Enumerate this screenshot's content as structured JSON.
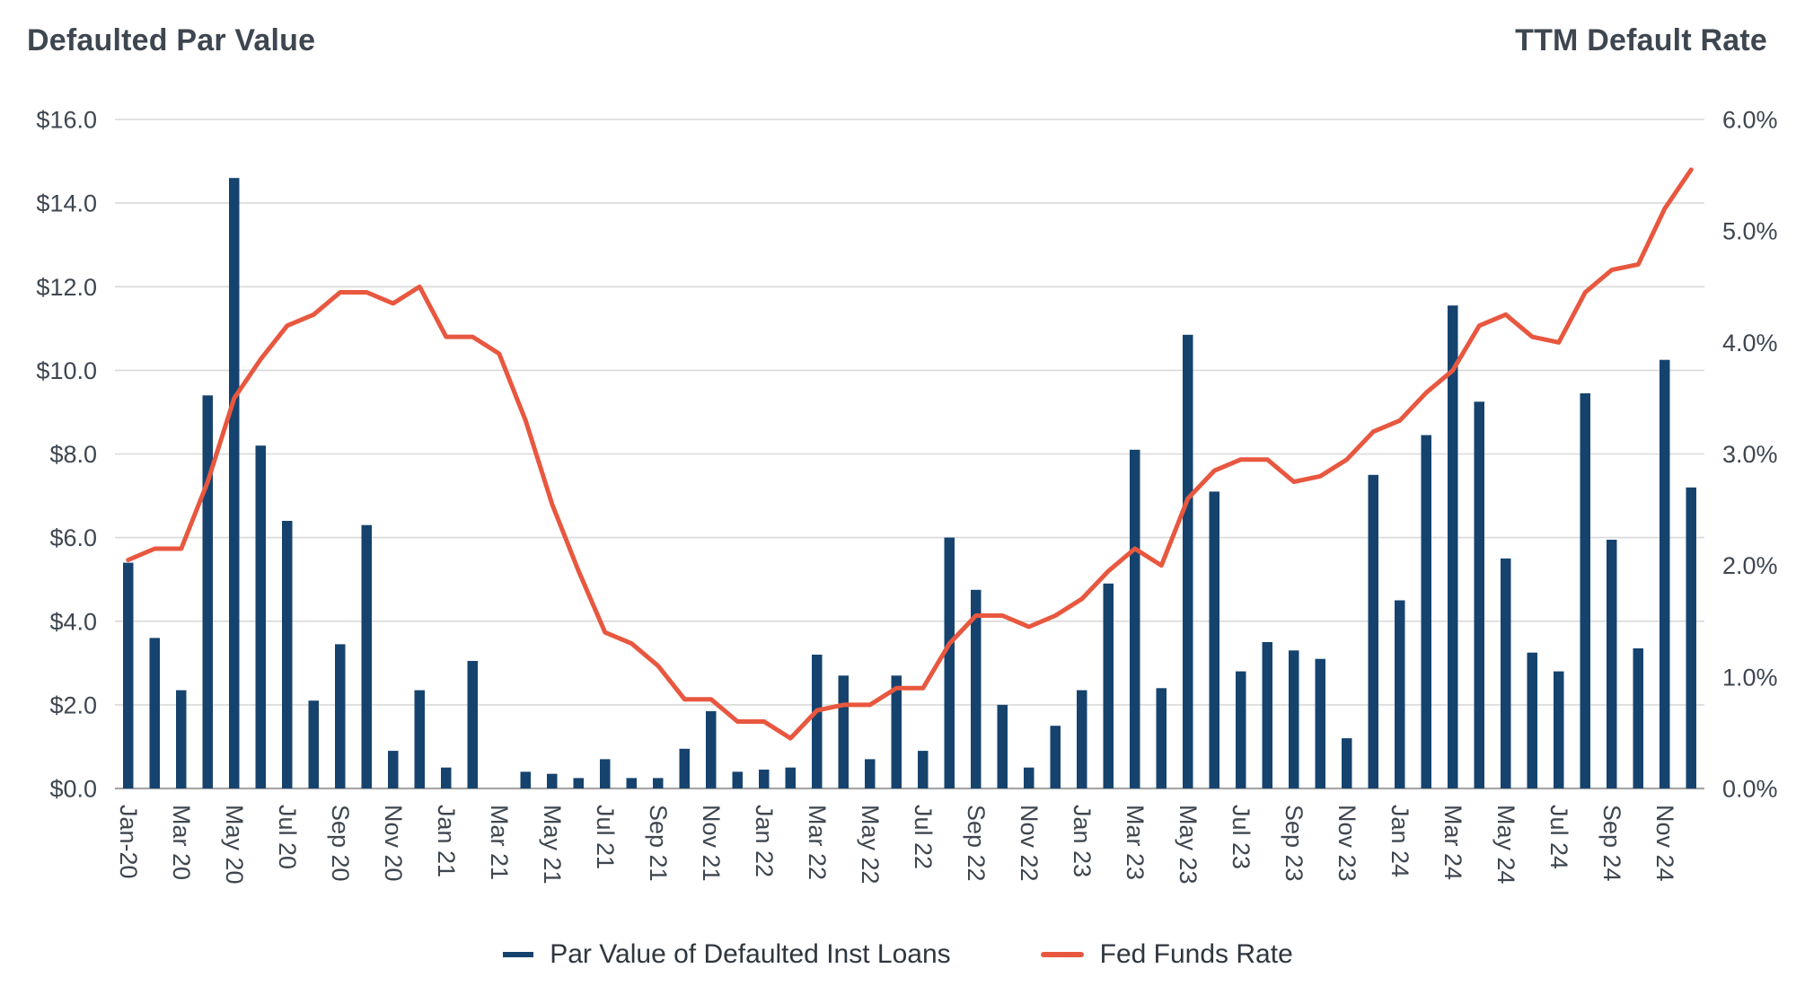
{
  "header": {
    "left_title": "Defaulted Par Value",
    "right_title": "TTM Default Rate"
  },
  "legend": {
    "items": [
      {
        "label": "Par Value of Defaulted Inst Loans",
        "color": "#16436E",
        "marker": "bar"
      },
      {
        "label": "Fed Funds Rate",
        "color": "#E8573F",
        "marker": "line"
      }
    ]
  },
  "chart_data": {
    "type": "combo",
    "title_left": "Defaulted Par Value",
    "title_right": "TTM Default Rate",
    "grid": "horizontal",
    "legend_position": "bottom-center",
    "style": {
      "grid_color": "#D9D9D9",
      "axis_color": "#A7A7A7",
      "text_color": "#3E4650",
      "background": "#FFFFFF"
    },
    "left_axis": {
      "min": 0,
      "max": 16,
      "step": 2,
      "ticks": [
        "$16.0",
        "$14.0",
        "$12.0",
        "$10.0",
        "$8.0",
        "$6.0",
        "$4.0",
        "$2.0",
        "$0.0"
      ]
    },
    "right_axis": {
      "min": 0,
      "max": 6,
      "step": 1,
      "ticks": [
        "6.0%",
        "5.0%",
        "4.0%",
        "3.0%",
        "2.0%",
        "1.0%",
        "0.0%"
      ]
    },
    "categories": [
      "Jan-20",
      "Feb-20",
      "Mar-20",
      "Apr-20",
      "May-20",
      "Jun-20",
      "Jul-20",
      "Aug-20",
      "Sep-20",
      "Oct-20",
      "Nov-20",
      "Dec-20",
      "Jan-21",
      "Feb-21",
      "Mar-21",
      "Apr-21",
      "May-21",
      "Jun-21",
      "Jul-21",
      "Aug-21",
      "Sep-21",
      "Oct-21",
      "Nov-21",
      "Dec-21",
      "Jan-22",
      "Feb-22",
      "Mar-22",
      "Apr-22",
      "May-22",
      "Jun-22",
      "Jul-22",
      "Aug-22",
      "Sep-22",
      "Oct-22",
      "Nov-22",
      "Dec-22",
      "Jan-23",
      "Feb-23",
      "Mar-23",
      "Apr-23",
      "May-23",
      "Jun-23",
      "Jul-23",
      "Aug-23",
      "Sep-23",
      "Oct-23",
      "Nov-23",
      "Dec-23",
      "Jan-24",
      "Feb-24",
      "Mar-24",
      "Apr-24",
      "May-24",
      "Jun-24",
      "Jul-24",
      "Aug-24",
      "Sep-24",
      "Oct-24",
      "Nov-24",
      "Dec-24"
    ],
    "x_tick_labels": [
      "Jan-20",
      "Mar 20",
      "May 20",
      "Jul 20",
      "Sep 20",
      "Nov 20",
      "Jan 21",
      "Mar 21",
      "May 21",
      "Jul 21",
      "Sep 21",
      "Nov 21",
      "Jan 22",
      "Mar 22",
      "May 22",
      "Jul 22",
      "Sep 22",
      "Nov 22",
      "Jan 23",
      "Mar 23",
      "May 23",
      "Jul 23",
      "Sep 23",
      "Nov 23",
      "Jan 24",
      "Mar 24",
      "May 24",
      "Jul 24",
      "Sep 24",
      "Nov 24"
    ],
    "x_tick_every": 2,
    "series": [
      {
        "name": "Par Value of Defaulted Inst Loans",
        "type": "bar",
        "axis": "left",
        "color": "#16436E",
        "values": [
          5.4,
          3.6,
          2.35,
          9.4,
          14.6,
          8.2,
          6.4,
          2.1,
          3.45,
          6.3,
          0.9,
          2.35,
          0.5,
          3.05,
          0,
          0.4,
          0.35,
          0.25,
          0.7,
          0.25,
          0.25,
          0.95,
          1.85,
          0.4,
          0.45,
          0.5,
          3.2,
          2.7,
          0.7,
          2.7,
          0.9,
          6.0,
          4.75,
          2.0,
          0.5,
          1.5,
          2.35,
          4.9,
          8.1,
          2.4,
          10.85,
          7.1,
          2.8,
          3.5,
          3.3,
          3.1,
          1.2,
          7.5,
          4.5,
          8.45,
          11.55,
          9.25,
          5.5,
          3.25,
          2.8,
          9.45,
          5.95,
          3.35,
          10.25,
          7.2
        ]
      },
      {
        "name": "Fed Funds Rate",
        "type": "line",
        "axis": "right",
        "color": "#E8573F",
        "values": [
          2.05,
          2.15,
          2.15,
          2.75,
          3.5,
          3.85,
          4.15,
          4.25,
          4.45,
          4.45,
          4.35,
          4.5,
          4.05,
          4.05,
          3.9,
          3.3,
          2.55,
          1.95,
          1.4,
          1.3,
          1.1,
          0.8,
          0.8,
          0.6,
          0.6,
          0.45,
          0.7,
          0.75,
          0.75,
          0.9,
          0.9,
          1.3,
          1.55,
          1.55,
          1.45,
          1.55,
          1.7,
          1.95,
          2.15,
          2.0,
          2.6,
          2.85,
          2.95,
          2.95,
          2.75,
          2.8,
          2.95,
          3.2,
          3.3,
          3.55,
          3.75,
          4.15,
          4.25,
          4.05,
          4.0,
          4.45,
          4.65,
          4.7,
          5.2,
          5.55
        ]
      }
    ]
  }
}
